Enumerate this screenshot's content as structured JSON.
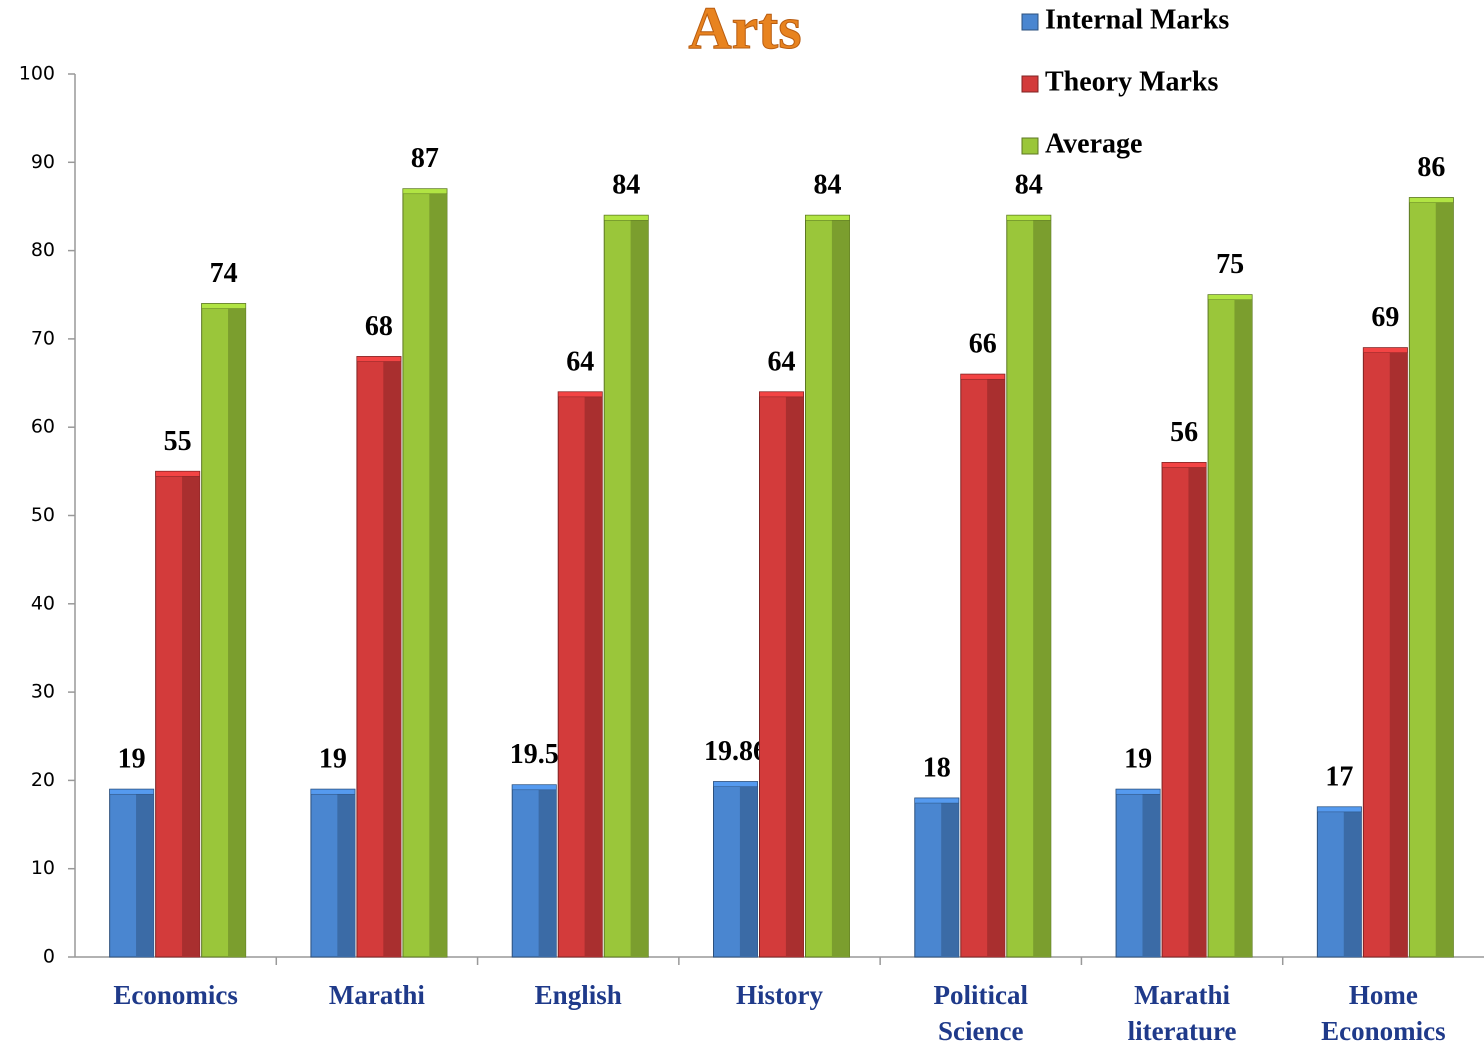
{
  "chart_data": {
    "type": "bar",
    "title": "Arts",
    "categories": [
      "Economics",
      "Marathi",
      "English",
      "History",
      "Political Science",
      "Marathi literature",
      "Home Economics"
    ],
    "series": [
      {
        "name": "Internal Marks",
        "color": "#4a86d0",
        "values": [
          19,
          19,
          19.5,
          19.86,
          18,
          19,
          17
        ]
      },
      {
        "name": "Theory Marks",
        "color": "#d33b3b",
        "values": [
          55,
          68,
          64,
          64,
          66,
          56,
          69
        ]
      },
      {
        "name": "Average",
        "color": "#9ac63a",
        "values": [
          74,
          87,
          84,
          84,
          84,
          75,
          86
        ]
      }
    ],
    "ylim": [
      0,
      100
    ],
    "yticks": [
      0,
      10,
      20,
      30,
      40,
      50,
      60,
      70,
      80,
      90,
      100
    ],
    "legend": "top-right",
    "grid": false
  }
}
